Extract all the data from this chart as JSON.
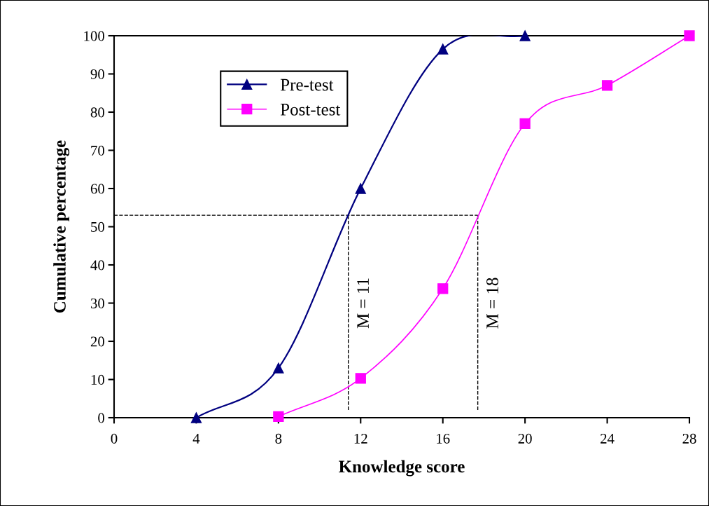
{
  "chart_data": {
    "type": "line",
    "xlabel": "Knowledge score",
    "ylabel": "Cumulative percentage",
    "xlim": [
      0,
      28
    ],
    "xticks": [
      0,
      4,
      8,
      12,
      16,
      20,
      24,
      28
    ],
    "ylim": [
      0,
      100
    ],
    "yticks": [
      0,
      10,
      20,
      30,
      40,
      50,
      60,
      70,
      80,
      90,
      100
    ],
    "series": [
      {
        "name": "Pre-test",
        "color": "#000080",
        "marker": "triangle",
        "x": [
          4,
          8,
          12,
          16,
          20
        ],
        "values": [
          0,
          13,
          60,
          96.5,
          100
        ]
      },
      {
        "name": "Post-test",
        "color": "#ff00ff",
        "marker": "square",
        "x": [
          8,
          12,
          16,
          20,
          24,
          28
        ],
        "values": [
          0.3,
          10.3,
          33.8,
          77,
          87,
          100
        ]
      }
    ],
    "ref_lines": [
      {
        "axis": "y",
        "value": 53,
        "color": "#000000",
        "line_style": "dashed"
      },
      {
        "axis": "x",
        "value": 11.4,
        "label": "M = 11",
        "color": "#000000",
        "line_style": "dashed"
      },
      {
        "axis": "x",
        "value": 17.7,
        "label": "M = 18",
        "color": "#000000",
        "line_style": "dashed"
      }
    ],
    "grid": false,
    "legend": "top left",
    "line_style": "solid"
  }
}
